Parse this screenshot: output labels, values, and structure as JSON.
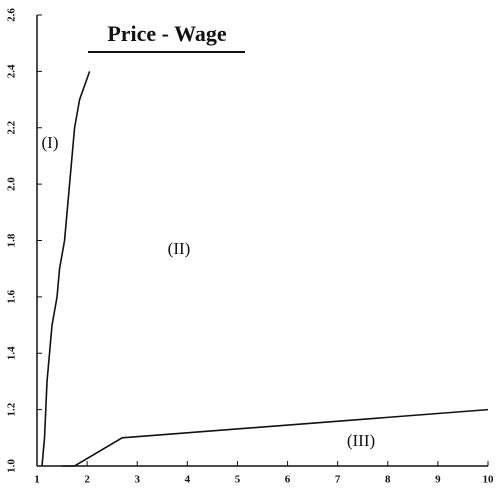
{
  "chart_data": {
    "type": "line",
    "title": "Price - Wage",
    "series": [
      {
        "color": "#111111",
        "x": [
          1.1,
          1.15,
          1.2,
          1.25,
          1.3,
          1.4,
          1.45,
          1.55,
          1.65,
          1.75,
          1.85,
          2.05
        ],
        "values": [
          1.0,
          1.1,
          1.3,
          1.4,
          1.5,
          1.6,
          1.7,
          1.8,
          2.0,
          2.2,
          2.3,
          2.4
        ]
      },
      {
        "color": "#111111",
        "x": [
          1.5,
          1.75,
          2.7,
          10
        ],
        "values": [
          1.0,
          1.0,
          1.1,
          1.2
        ]
      }
    ],
    "annotations": [
      "(I)",
      "(II)",
      "(III)"
    ],
    "xlim": [
      1,
      10
    ],
    "xticks": [
      1,
      2,
      3,
      4,
      5,
      6,
      7,
      8,
      9,
      10
    ],
    "ylim": [
      1,
      2.6
    ],
    "yticks": [
      {
        "value": 1,
        "label": "1.0"
      },
      1.2,
      1.4,
      1.6,
      1.8,
      {
        "value": 2,
        "label": "2.0"
      },
      2.2,
      2.4,
      2.6
    ]
  }
}
